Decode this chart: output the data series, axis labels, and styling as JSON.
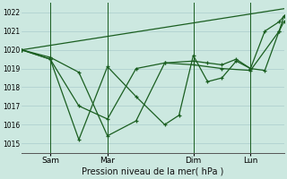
{
  "background_color": "#cce8e0",
  "grid_color": "#aacccc",
  "line_color": "#1a5e20",
  "title": "Pression niveau de la mer( hPa )",
  "ylim": [
    1014.5,
    1022.5
  ],
  "yticks": [
    1015,
    1016,
    1017,
    1018,
    1019,
    1020,
    1021,
    1022
  ],
  "xtick_labels": [
    "Sam",
    "Mar",
    "Dim",
    "Lun"
  ],
  "xtick_positions": [
    12,
    36,
    72,
    96
  ],
  "xlim": [
    0,
    110
  ],
  "line1_x": [
    0,
    12,
    24,
    36,
    48,
    60,
    72,
    78,
    84,
    90,
    96,
    102,
    108,
    110
  ],
  "line1_y": [
    1020.0,
    1019.6,
    1018.8,
    1015.4,
    1016.2,
    1019.3,
    1019.4,
    1019.3,
    1019.2,
    1019.5,
    1019.0,
    1021.0,
    1021.5,
    1021.8
  ],
  "line2_x": [
    0,
    12,
    24,
    36,
    48,
    60,
    72,
    84,
    96,
    108,
    110
  ],
  "line2_y": [
    1020.0,
    1019.5,
    1017.0,
    1016.3,
    1019.0,
    1019.3,
    1019.2,
    1019.0,
    1018.9,
    1021.0,
    1021.5
  ],
  "line3_x": [
    0,
    12,
    24,
    36,
    48,
    60,
    66,
    72,
    78,
    84,
    90,
    96,
    102,
    108,
    110
  ],
  "line3_y": [
    1020.0,
    1019.5,
    1015.2,
    1019.1,
    1017.5,
    1016.0,
    1016.5,
    1019.7,
    1018.3,
    1018.5,
    1019.4,
    1019.0,
    1018.9,
    1021.0,
    1021.8
  ],
  "line4_x": [
    0,
    110
  ],
  "line4_y": [
    1020.0,
    1022.2
  ],
  "vlines": [
    12,
    36,
    72,
    96
  ],
  "figsize": [
    3.2,
    2.0
  ],
  "dpi": 100
}
